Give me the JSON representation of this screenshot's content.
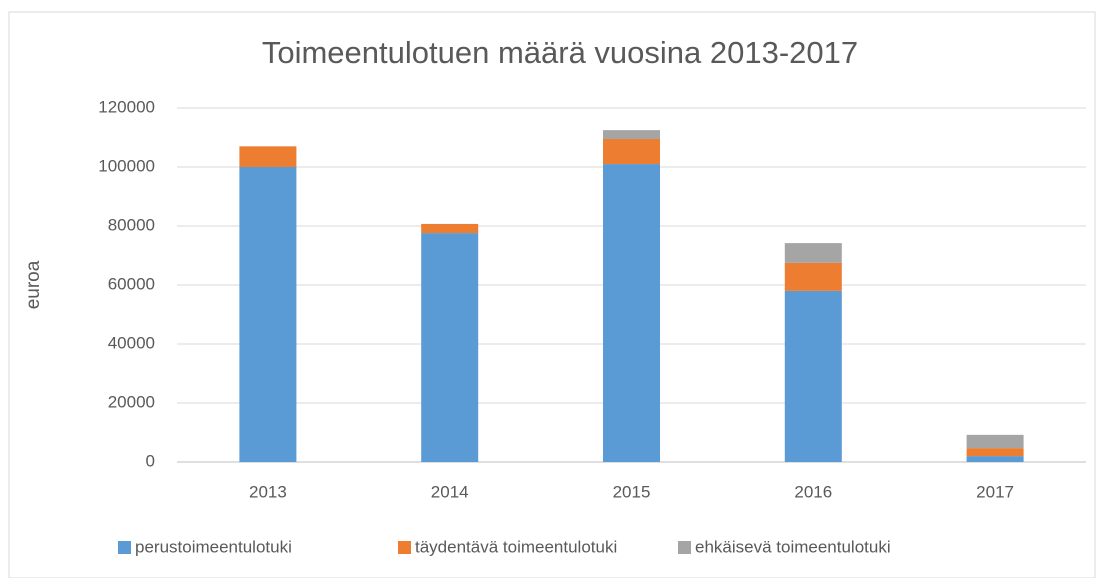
{
  "chart_data": {
    "type": "stacked_bar",
    "title": "Toimeentulotuen määrä vuosina 2013-2017",
    "y_label": "euroa",
    "categories": [
      "2013",
      "2014",
      "2015",
      "2016",
      "2017"
    ],
    "series": [
      {
        "name": "perustoimeentulotuki",
        "color": "#5b9bd5",
        "values": [
          100000,
          77600,
          101000,
          58000,
          2000
        ]
      },
      {
        "name": "täydentävä toimeentulotuki",
        "color": "#ed7d31",
        "values": [
          7000,
          3100,
          8500,
          9500,
          2700
        ]
      },
      {
        "name": "ehkäisevä toimeentulotuki",
        "color": "#a5a5a5",
        "values": [
          0,
          0,
          3000,
          6700,
          4500
        ]
      }
    ],
    "ylim": [
      0,
      120000
    ],
    "yticks": [
      0,
      20000,
      40000,
      60000,
      80000,
      100000,
      120000
    ],
    "grid": true,
    "legend": "bottom"
  }
}
